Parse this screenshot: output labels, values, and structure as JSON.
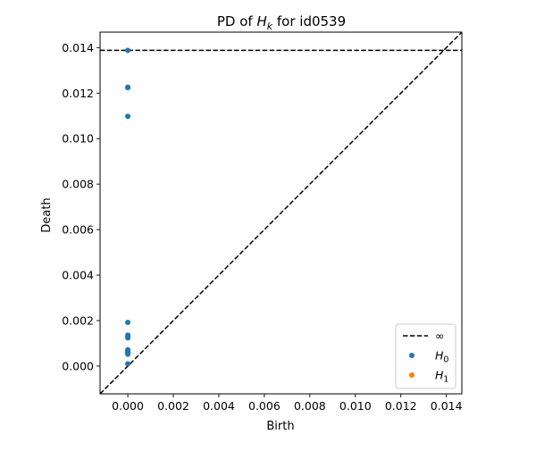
{
  "chart_data": {
    "type": "scatter",
    "title_prefix": "PD of ",
    "title_var": "H",
    "title_var_sub": "k",
    "title_suffix": " for id0539",
    "xlabel": "Birth",
    "ylabel": "Death",
    "xlim": [
      -0.00122,
      0.01468
    ],
    "ylim": [
      -0.00122,
      0.01468
    ],
    "xticks": [
      0.0,
      0.002,
      0.004,
      0.006,
      0.008,
      0.01,
      0.012,
      0.014
    ],
    "xtick_labels": [
      "0.000",
      "0.002",
      "0.004",
      "0.006",
      "0.008",
      "0.010",
      "0.012",
      "0.014"
    ],
    "yticks": [
      0.0,
      0.002,
      0.004,
      0.006,
      0.008,
      0.01,
      0.012,
      0.014
    ],
    "ytick_labels": [
      "0.000",
      "0.002",
      "0.004",
      "0.006",
      "0.008",
      "0.010",
      "0.012",
      "0.014"
    ],
    "infinity_line": 0.01388,
    "diagonal": true,
    "legend_position": "lower-right",
    "legend": [
      {
        "key": "inf",
        "label": "∞",
        "style": "dashed-line",
        "color": "#000000"
      },
      {
        "key": "h0",
        "label": "H",
        "sub": "0",
        "style": "dot",
        "color": "#1f77b4"
      },
      {
        "key": "h1",
        "label": "H",
        "sub": "1",
        "style": "dot",
        "color": "#ff7f0e"
      }
    ],
    "series": [
      {
        "key": "h0",
        "color": "#1f77b4",
        "points": [
          [
            0,
            0.01388
          ],
          [
            0,
            0.01226
          ],
          [
            0,
            0.01224
          ],
          [
            0,
            0.01098
          ],
          [
            0,
            0.00192
          ],
          [
            0,
            0.00136
          ],
          [
            0,
            0.0013
          ],
          [
            0,
            0.00124
          ],
          [
            0,
            0.00072
          ],
          [
            0,
            0.00066
          ],
          [
            0,
            0.0006
          ],
          [
            0,
            0.00056
          ],
          [
            0,
            0.00052
          ],
          [
            0,
            0.0001
          ]
        ]
      },
      {
        "key": "h1",
        "color": "#ff7f0e",
        "points": []
      }
    ]
  }
}
